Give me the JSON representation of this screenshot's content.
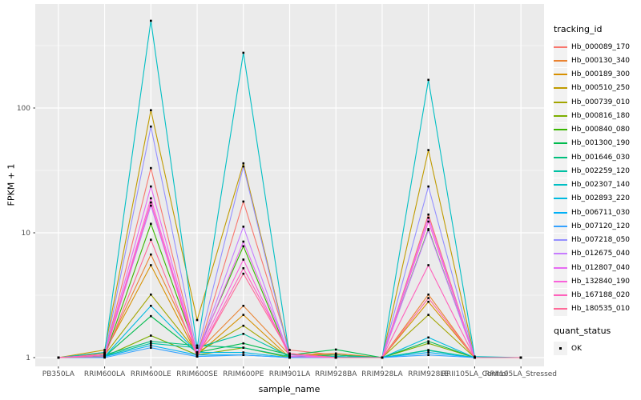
{
  "chart_data": {
    "type": "line",
    "title": "",
    "xlabel": "sample_name",
    "ylabel": "FPKM + 1",
    "y_scale": "log10",
    "y_ticks": [
      1,
      10,
      100
    ],
    "y_minor_ticks": [
      3.162,
      31.62,
      316.2
    ],
    "ylim": [
      1,
      650
    ],
    "grid": true,
    "legend_position": "right",
    "panel_bg": "#EBEBEB",
    "grid_color": "#FFFFFF",
    "point_color": "#000000",
    "point_shape": "square",
    "values_unit": "FPKM + 1",
    "categories": [
      "PB350LA",
      "RRIM600LA",
      "RRIM600LE",
      "RRIM600SE",
      "RRIM600PE",
      "RRIM901LA",
      "RRIM928BA",
      "RRIM928LA",
      "RRIM928LE",
      "RRII105LA_Control",
      "RRII105LA_Stressed"
    ],
    "series": [
      {
        "name": "Hb_000089_170",
        "color": "#F8766D",
        "values": [
          1,
          1.05,
          33,
          1.05,
          17.8,
          1.15,
          1.05,
          1,
          14,
          1,
          1
        ]
      },
      {
        "name": "Hb_000130_340",
        "color": "#EA8331",
        "values": [
          1,
          1.08,
          6.7,
          1.1,
          2.6,
          1.05,
          1.08,
          1,
          3.2,
          1,
          1
        ]
      },
      {
        "name": "Hb_000189_300",
        "color": "#D89000",
        "values": [
          1,
          1.1,
          5.5,
          1.05,
          2.2,
          1,
          1.05,
          1,
          2.8,
          1,
          1
        ]
      },
      {
        "name": "Hb_000510_250",
        "color": "#C09B00",
        "values": [
          1,
          1.15,
          96,
          2.0,
          36,
          1.05,
          1.05,
          1,
          46,
          1,
          1
        ]
      },
      {
        "name": "Hb_000739_010",
        "color": "#A3A500",
        "values": [
          1,
          1.05,
          3.2,
          1.1,
          1.8,
          1,
          1.05,
          1,
          2.2,
          1,
          1
        ]
      },
      {
        "name": "Hb_000816_180",
        "color": "#7CAE00",
        "values": [
          1,
          1.02,
          1.5,
          1.05,
          1.2,
          1,
          1,
          1,
          1.3,
          1,
          1
        ]
      },
      {
        "name": "Hb_000840_080",
        "color": "#39B600",
        "values": [
          1,
          1.02,
          11.8,
          1.1,
          7.8,
          1,
          1,
          1,
          10.7,
          1,
          1
        ]
      },
      {
        "name": "Hb_001300_190",
        "color": "#00BB4E",
        "values": [
          1,
          1.02,
          2.15,
          1.1,
          1.3,
          1.05,
          1.16,
          1,
          1.35,
          1,
          1
        ]
      },
      {
        "name": "Hb_001646_030",
        "color": "#00BF7D",
        "values": [
          1,
          1.05,
          1.35,
          1.25,
          1.2,
          1.02,
          1.05,
          1,
          1.15,
          1,
          1
        ]
      },
      {
        "name": "Hb_002259_120",
        "color": "#00C1A3",
        "values": [
          1,
          1.03,
          1.3,
          1.2,
          1.55,
          1.02,
          1.02,
          1,
          1.14,
          1,
          1
        ]
      },
      {
        "name": "Hb_002307_140",
        "color": "#00BFC4",
        "values": [
          1,
          1.1,
          500,
          1.2,
          277,
          1.02,
          1.02,
          1,
          168,
          1.02,
          1
        ]
      },
      {
        "name": "Hb_002893_220",
        "color": "#00BAE0",
        "values": [
          1,
          1.02,
          2.6,
          1.1,
          1.1,
          1,
          1,
          1,
          1.45,
          1,
          1
        ]
      },
      {
        "name": "Hb_006711_030",
        "color": "#00B0F6",
        "values": [
          1,
          1.02,
          1.25,
          1.05,
          1.05,
          1,
          1,
          1,
          1.1,
          1,
          1
        ]
      },
      {
        "name": "Hb_007120_120",
        "color": "#35A2FF",
        "values": [
          1,
          1,
          1.2,
          1.02,
          1.05,
          1,
          1,
          1,
          1.05,
          1,
          1
        ]
      },
      {
        "name": "Hb_007218_050",
        "color": "#9590FF",
        "values": [
          1,
          1.05,
          71,
          1.1,
          34,
          1.02,
          1,
          1,
          23.5,
          1,
          1
        ]
      },
      {
        "name": "Hb_012675_040",
        "color": "#C77CFF",
        "values": [
          1,
          1.05,
          16.5,
          1.05,
          11.2,
          1.02,
          1,
          1,
          10.5,
          1,
          1
        ]
      },
      {
        "name": "Hb_012807_040",
        "color": "#E76BF3",
        "values": [
          1,
          1.05,
          23.5,
          1.05,
          8.5,
          1.05,
          1,
          1,
          13.2,
          1,
          1
        ]
      },
      {
        "name": "Hb_132840_190",
        "color": "#FA62DB",
        "values": [
          1,
          1.05,
          18.9,
          1.05,
          6.1,
          1.02,
          1,
          1,
          12.3,
          1,
          1
        ]
      },
      {
        "name": "Hb_167188_020",
        "color": "#FF62BC",
        "values": [
          1,
          1.05,
          17.5,
          1.02,
          5.2,
          1.08,
          1,
          1,
          5.5,
          1,
          1
        ]
      },
      {
        "name": "Hb_180535_010",
        "color": "#FF6A98",
        "values": [
          1,
          1.02,
          8.8,
          1.02,
          4.7,
          1.08,
          1,
          1,
          3.0,
          1,
          1
        ]
      }
    ]
  },
  "legend": {
    "tracking_title": "tracking_id",
    "quant_title": "quant_status",
    "quant_items": [
      {
        "label": "OK",
        "marker": "black-square"
      }
    ],
    "key_bg": "#F2F2F2"
  }
}
